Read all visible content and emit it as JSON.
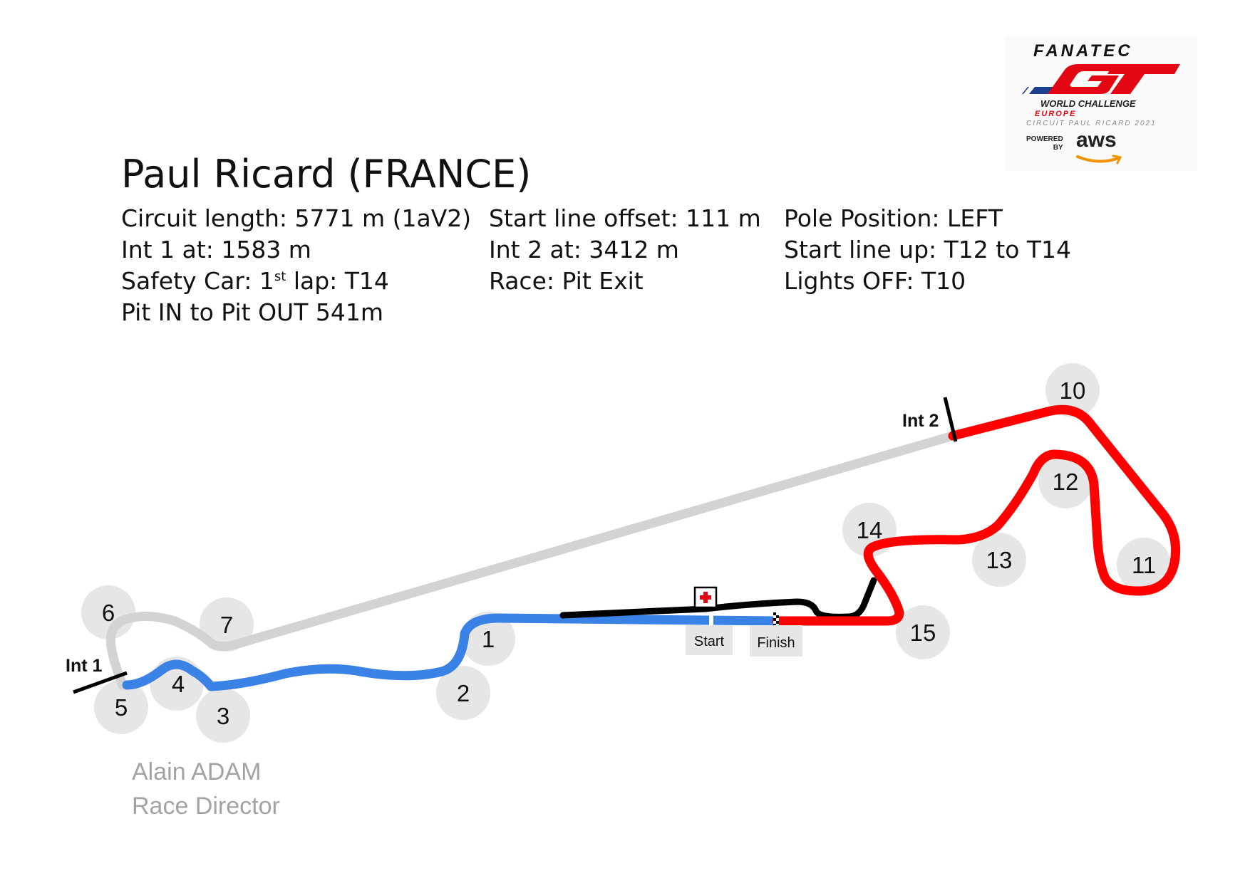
{
  "header": {
    "title": "Paul Ricard (FRANCE)"
  },
  "info": {
    "circuit_length": "Circuit length:  5771 m (1aV2)",
    "int1": "Int 1 at: 1583 m",
    "safety_car_prefix": "Safety Car: 1",
    "safety_car_sup": "st",
    "safety_car_suffix": " lap: T14",
    "pit_in_out": "Pit IN to Pit OUT 541m",
    "start_line_offset": "Start line offset: 111 m",
    "int2": "Int 2 at:  3412 m",
    "race": "Race: Pit Exit",
    "pole_position": "Pole Position: LEFT",
    "start_line_up": "Start line up: T12 to T14",
    "lights_off": "Lights OFF: T10"
  },
  "logo": {
    "brand": "FANATEC",
    "series": "GT",
    "world_challenge": "WORLD CHALLENGE",
    "region": "EUROPE",
    "event": "CIRCUIT PAUL RICARD 2021",
    "powered": "POWERED",
    "by": "BY",
    "aws": "aws"
  },
  "signature": {
    "name": "Alain ADAM",
    "role": "Race Director"
  },
  "map": {
    "sector_colors": {
      "sector1": "#3b82e6",
      "sector2": "#d3d3d3",
      "sector3": "#ff0000",
      "pit_lane": "#000000"
    },
    "turns": [
      "1",
      "2",
      "3",
      "4",
      "5",
      "6",
      "7",
      "10",
      "11",
      "12",
      "13",
      "14",
      "15"
    ],
    "int1_label": "Int 1",
    "int2_label": "Int 2",
    "start_label": "Start",
    "finish_label": "Finish",
    "medical_icon": "medical-cross-icon"
  }
}
